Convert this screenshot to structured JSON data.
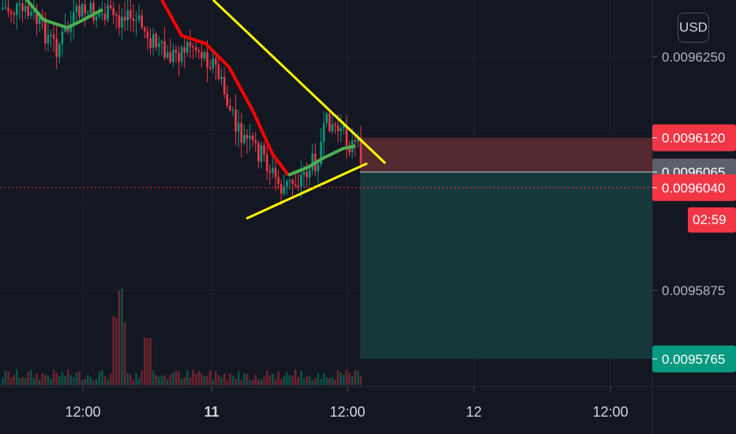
{
  "currency": "USD",
  "price_axis": {
    "ticks": [
      "0.0096250",
      "0.0095875"
    ],
    "ylim": [
      0.00957,
      0.009635
    ]
  },
  "price_tags": [
    {
      "id": "stop-loss",
      "label": "0.0096120",
      "color": "#f23645",
      "value": 0.009612
    },
    {
      "id": "entry",
      "label": "0.0096065",
      "color": "#5d606b",
      "value": 0.0096065
    },
    {
      "id": "last-price",
      "label": "0.0096040",
      "color": "#f23645",
      "value": 0.009604
    },
    {
      "id": "take-profit",
      "label": "0.0095765",
      "color": "#089981",
      "value": 0.0095765
    }
  ],
  "countdown": {
    "label": "02:59",
    "color": "#f23645"
  },
  "time_axis": {
    "labels": [
      {
        "text": "12:00",
        "bold": false
      },
      {
        "text": "11",
        "bold": true
      },
      {
        "text": "12:00",
        "bold": false
      },
      {
        "text": "12",
        "bold": false
      },
      {
        "text": "12:00",
        "bold": false
      }
    ]
  },
  "chart_data": {
    "type": "candlestick",
    "colors": {
      "up": "#089981",
      "down": "#f23645",
      "ma_down": "#ff0000",
      "ma_up": "#4caf50",
      "trendline": "#ffff00",
      "risk_zone": "#5b2a31",
      "reward_zone": "#163a3d"
    },
    "short_position": {
      "entry": 0.0096065,
      "stop": 0.009612,
      "target": 0.0095765
    },
    "last_price": 0.009604,
    "pattern": "descending wedge"
  }
}
